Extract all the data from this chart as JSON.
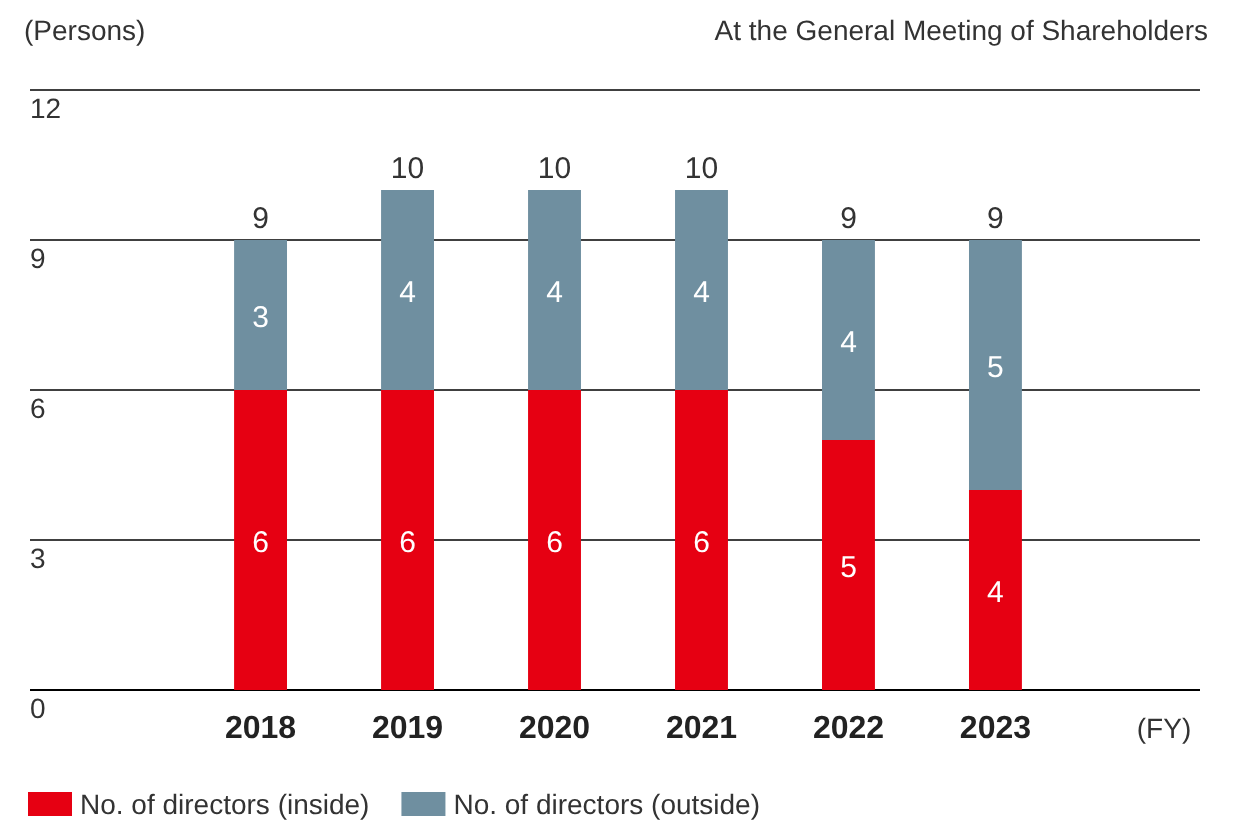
{
  "chart_data": {
    "type": "bar",
    "stacked": true,
    "ylabel": "(Persons)",
    "subtitle": "At the General Meeting of Shareholders",
    "xlabel": "(FY)",
    "categories": [
      "2018",
      "2019",
      "2020",
      "2021",
      "2022",
      "2023"
    ],
    "series": [
      {
        "name": "No. of directors (inside)",
        "color": "#e60012",
        "values": [
          6,
          6,
          6,
          6,
          5,
          4
        ]
      },
      {
        "name": "No. of directors (outside)",
        "color": "#6f8fa0",
        "values": [
          3,
          4,
          4,
          4,
          4,
          5
        ]
      }
    ],
    "totals": [
      "9",
      "10",
      "10",
      "10",
      "9",
      "9"
    ],
    "ylim": [
      0,
      12
    ],
    "yticks": [
      0,
      3,
      6,
      9,
      12
    ],
    "grid": "y",
    "legend": "bottom",
    "data_labels": true
  }
}
